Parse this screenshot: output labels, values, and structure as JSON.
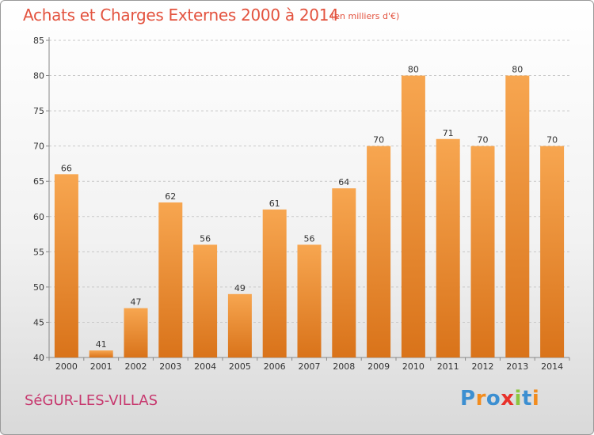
{
  "header": {
    "title": "Achats et Charges Externes 2000 à 2014",
    "unit": "(en milliers d'€)"
  },
  "footer": {
    "location": "SéGUR-LES-VILLAS",
    "logo": "Proxiti"
  },
  "colors": {
    "bar_top": "#f7a650",
    "bar_bottom": "#d9731a",
    "title": "#e3533f",
    "location": "#c7386e",
    "logo_letters": [
      "#3c8fd1",
      "#f28c1e",
      "#3c8fd1",
      "#e8312a",
      "#8cc63f",
      "#3c8fd1",
      "#f28c1e"
    ]
  },
  "chart_data": {
    "type": "bar",
    "title": "Achats et Charges Externes 2000 à 2014",
    "subtitle": "(en milliers d'€)",
    "categories": [
      "2000",
      "2001",
      "2002",
      "2003",
      "2004",
      "2005",
      "2006",
      "2007",
      "2008",
      "2009",
      "2010",
      "2011",
      "2012",
      "2013",
      "2014"
    ],
    "values": [
      66,
      41,
      47,
      62,
      56,
      49,
      61,
      56,
      64,
      70,
      80,
      71,
      70,
      80,
      70
    ],
    "ylim": [
      40,
      85
    ],
    "yticks": [
      40,
      45,
      50,
      55,
      60,
      65,
      70,
      75,
      80,
      85
    ],
    "grid": true,
    "xlabel": "",
    "ylabel": ""
  }
}
